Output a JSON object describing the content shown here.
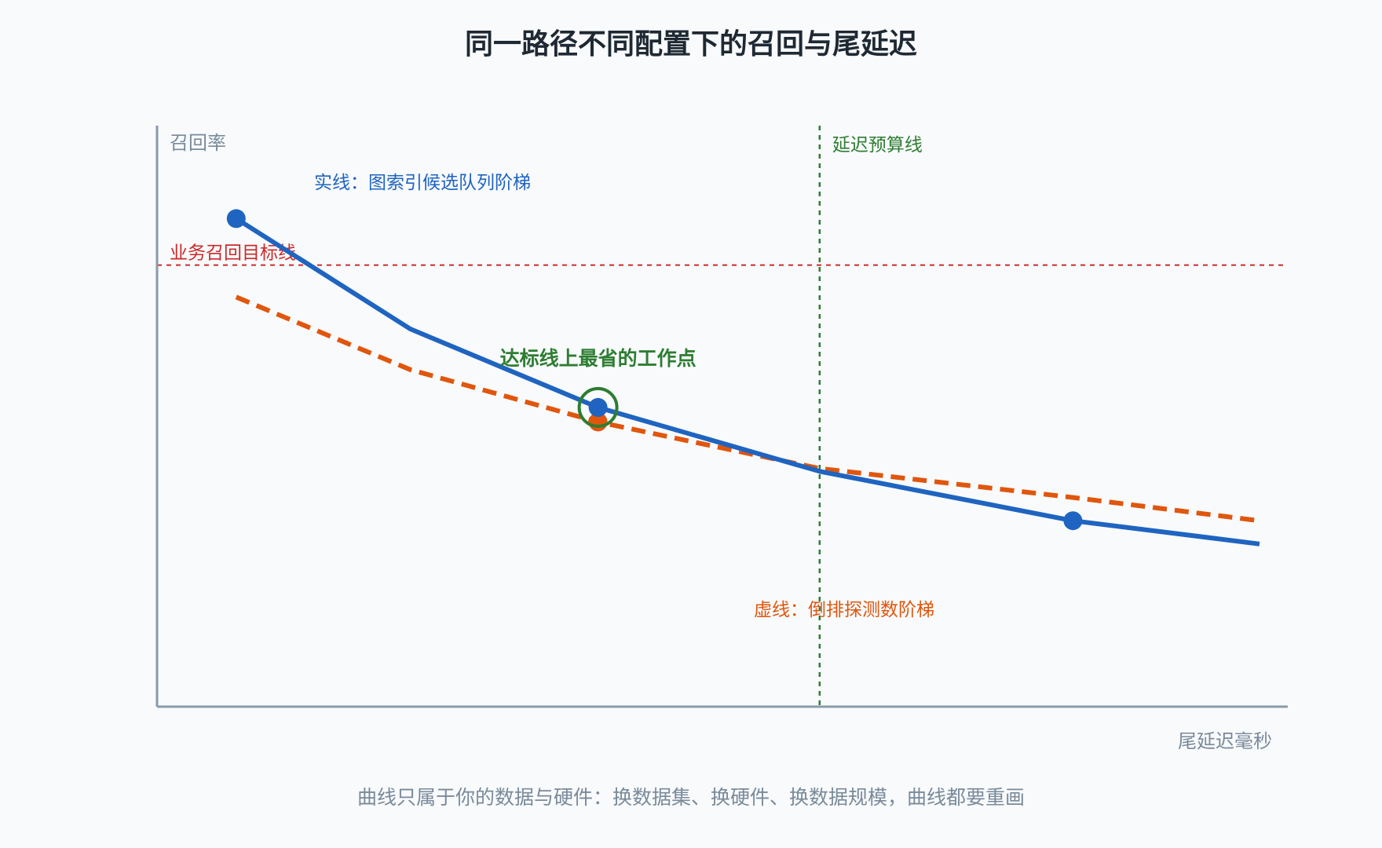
{
  "chart_data": {
    "type": "line",
    "title": "同一路径不同配置下的召回与尾延迟",
    "xlabel": "尾延迟毫秒",
    "ylabel": "召回率",
    "footnote": "曲线只属于你的数据与硬件：换数据集、换硬件、换数据规模，曲线都要重画",
    "xlim": [
      0,
      100
    ],
    "ylim": [
      0,
      100
    ],
    "grid": false,
    "series": [
      {
        "name": "实线：图索引候选队列阶梯",
        "color": "#1f64c0",
        "style": "solid",
        "points": [
          {
            "x": 7,
            "y": 84,
            "marker": true
          },
          {
            "x": 22.4,
            "y": 65,
            "marker": false
          },
          {
            "x": 39,
            "y": 51.5,
            "marker": true
          },
          {
            "x": 58.6,
            "y": 40.5,
            "marker": false
          },
          {
            "x": 81,
            "y": 32,
            "marker": true
          },
          {
            "x": 97.5,
            "y": 28,
            "marker": false
          }
        ]
      },
      {
        "name": "虚线：倒排探测数阶梯",
        "color": "#e0560d",
        "style": "dashed",
        "points": [
          {
            "x": 7,
            "y": 70.5,
            "marker": false
          },
          {
            "x": 22.4,
            "y": 58,
            "marker": false
          },
          {
            "x": 39,
            "y": 49,
            "marker": true
          },
          {
            "x": 58.6,
            "y": 41,
            "marker": false
          },
          {
            "x": 81,
            "y": 36,
            "marker": false
          },
          {
            "x": 97.5,
            "y": 32,
            "marker": false
          }
        ]
      }
    ],
    "reference_lines": {
      "target": {
        "label": "业务召回目标线",
        "y": 76,
        "color": "#cc2a2a"
      },
      "budget": {
        "label": "延迟预算线",
        "x": 58.6,
        "color": "#2e7d32"
      }
    },
    "highlight": {
      "label": "达标线上最省的工作点",
      "x": 39,
      "y": 51.5,
      "color": "#2e7d32"
    },
    "colors": {
      "axis": "#8a9aaa",
      "axis_text": "#7a8a9a",
      "title": "#1f2933",
      "background": "#f8fafc"
    }
  }
}
